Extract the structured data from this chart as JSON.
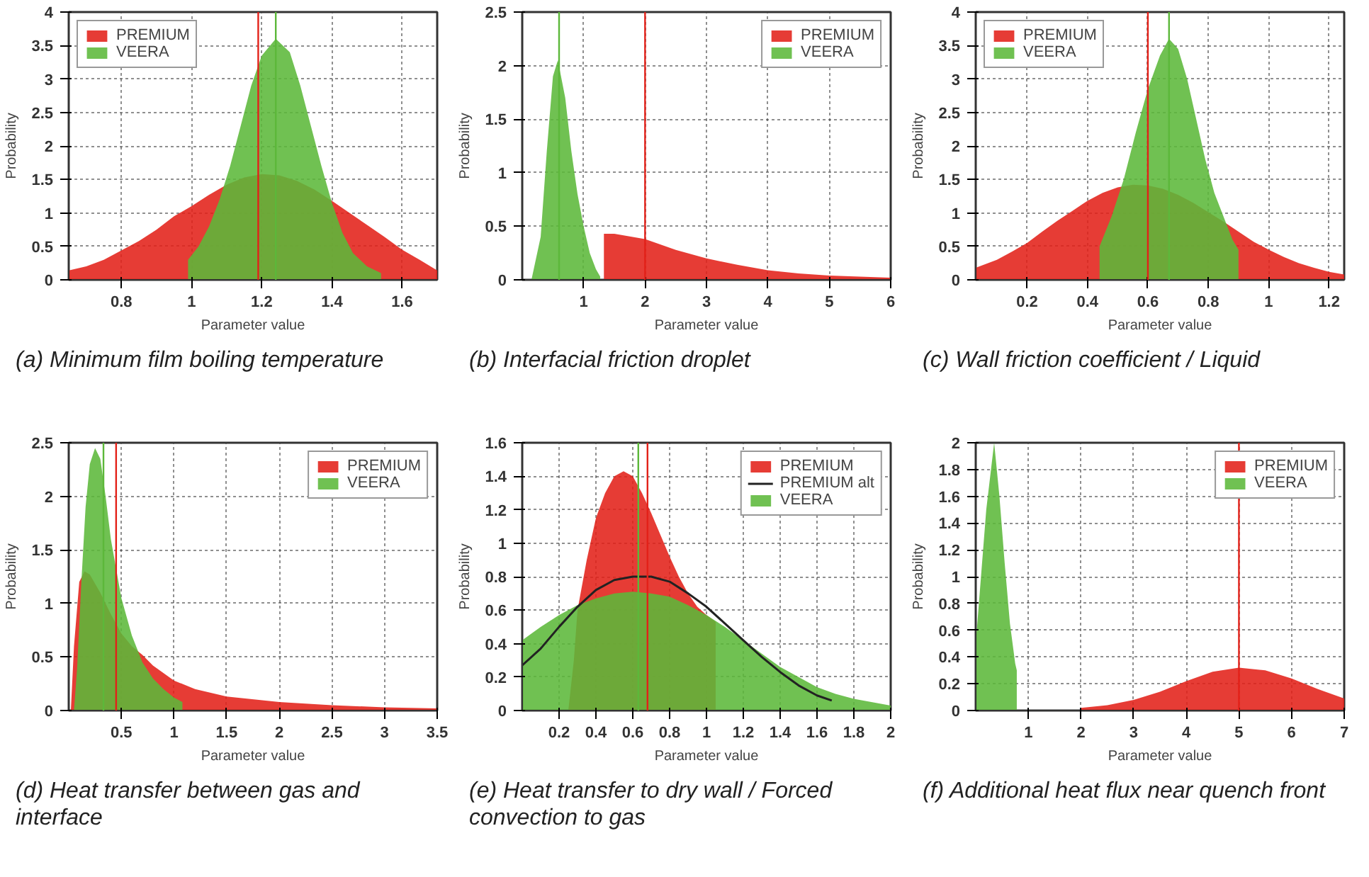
{
  "chart_data": [
    {
      "type": "area",
      "title": "(a) Minimum film boiling temperature",
      "xlabel": "Parameter value",
      "ylabel": "Probability",
      "xlim": [
        0.65,
        1.7
      ],
      "xticks": [
        0.8,
        1,
        1.2,
        1.4,
        1.6
      ],
      "ylim": [
        0,
        4
      ],
      "yticks": [
        0,
        0.5,
        1,
        1.5,
        2,
        2.5,
        3,
        3.5,
        4
      ],
      "grid": true,
      "legend": "top left",
      "series": [
        {
          "name": "PREMIUM",
          "color": "#e32119",
          "x": [
            0.65,
            0.7,
            0.75,
            0.8,
            0.85,
            0.9,
            0.95,
            1.0,
            1.05,
            1.1,
            1.15,
            1.2,
            1.25,
            1.3,
            1.35,
            1.4,
            1.45,
            1.5,
            1.55,
            1.6,
            1.65,
            1.7
          ],
          "values": [
            0.14,
            0.2,
            0.3,
            0.44,
            0.58,
            0.75,
            0.95,
            1.1,
            1.27,
            1.42,
            1.53,
            1.58,
            1.56,
            1.48,
            1.35,
            1.18,
            1.0,
            0.82,
            0.64,
            0.45,
            0.3,
            0.14
          ]
        },
        {
          "name": "VEERA",
          "color": "#5cb83a",
          "x": [
            0.99,
            1.02,
            1.05,
            1.08,
            1.11,
            1.14,
            1.17,
            1.2,
            1.24,
            1.28,
            1.31,
            1.34,
            1.37,
            1.4,
            1.43,
            1.46,
            1.5,
            1.54
          ],
          "values": [
            0.3,
            0.5,
            0.8,
            1.2,
            1.7,
            2.3,
            2.9,
            3.35,
            3.6,
            3.4,
            2.9,
            2.3,
            1.7,
            1.15,
            0.7,
            0.4,
            0.2,
            0.1
          ]
        }
      ],
      "ref_lines": [
        {
          "axis": "x",
          "value": 1.19,
          "color": "#e32119"
        },
        {
          "axis": "x",
          "value": 1.24,
          "color": "#5cb83a"
        }
      ]
    },
    {
      "type": "area",
      "title": "(b) Interfacial friction droplet",
      "xlabel": "Parameter value",
      "ylabel": "Probability",
      "xlim": [
        0,
        6
      ],
      "xticks": [
        1,
        2,
        3,
        4,
        5,
        6
      ],
      "ylim": [
        0,
        2.5
      ],
      "yticks": [
        0,
        0.5,
        1,
        1.5,
        2,
        2.5
      ],
      "grid": true,
      "legend": "top right",
      "series": [
        {
          "name": "PREMIUM",
          "color": "#e32119",
          "x": [
            1.33,
            1.5,
            2,
            2.5,
            3,
            3.5,
            4,
            4.5,
            5,
            5.5,
            6
          ],
          "values": [
            0.43,
            0.43,
            0.38,
            0.28,
            0.2,
            0.14,
            0.09,
            0.06,
            0.04,
            0.03,
            0.02
          ]
        },
        {
          "name": "VEERA",
          "color": "#5cb83a",
          "x": [
            0.15,
            0.3,
            0.4,
            0.5,
            0.58,
            0.7,
            0.8,
            0.9,
            1.0,
            1.1,
            1.2,
            1.27
          ],
          "values": [
            0,
            0.4,
            1.2,
            1.9,
            2.05,
            1.7,
            1.2,
            0.8,
            0.5,
            0.25,
            0.1,
            0.03
          ]
        }
      ],
      "ref_lines": [
        {
          "axis": "x",
          "value": 0.6,
          "color": "#5cb83a"
        },
        {
          "axis": "x",
          "value": 2.0,
          "color": "#e32119"
        }
      ]
    },
    {
      "type": "area",
      "title": "(c) Wall friction coefficient / Liquid",
      "xlabel": "Parameter value",
      "ylabel": "Probability",
      "xlim": [
        0.03,
        1.25
      ],
      "xticks": [
        0.2,
        0.4,
        0.6,
        0.8,
        1,
        1.2
      ],
      "ylim": [
        0,
        4
      ],
      "yticks": [
        0,
        0.5,
        1,
        1.5,
        2,
        2.5,
        3,
        3.5,
        4
      ],
      "grid": true,
      "legend": "top left",
      "series": [
        {
          "name": "PREMIUM",
          "color": "#e32119",
          "x": [
            0.03,
            0.1,
            0.15,
            0.2,
            0.25,
            0.3,
            0.35,
            0.4,
            0.45,
            0.5,
            0.55,
            0.6,
            0.65,
            0.7,
            0.75,
            0.8,
            0.85,
            0.9,
            0.95,
            1.0,
            1.05,
            1.1,
            1.15,
            1.2,
            1.25
          ],
          "values": [
            0.18,
            0.3,
            0.42,
            0.55,
            0.72,
            0.88,
            1.03,
            1.18,
            1.3,
            1.38,
            1.42,
            1.41,
            1.36,
            1.27,
            1.15,
            1.01,
            0.87,
            0.72,
            0.57,
            0.45,
            0.34,
            0.25,
            0.18,
            0.12,
            0.08
          ]
        },
        {
          "name": "VEERA",
          "color": "#5cb83a",
          "x": [
            0.44,
            0.48,
            0.52,
            0.56,
            0.6,
            0.64,
            0.67,
            0.7,
            0.73,
            0.76,
            0.79,
            0.82,
            0.85,
            0.88,
            0.9
          ],
          "values": [
            0.5,
            0.95,
            1.5,
            2.2,
            2.85,
            3.35,
            3.6,
            3.45,
            3.0,
            2.4,
            1.8,
            1.3,
            0.95,
            0.6,
            0.45
          ]
        }
      ],
      "ref_lines": [
        {
          "axis": "x",
          "value": 0.6,
          "color": "#e32119"
        },
        {
          "axis": "x",
          "value": 0.67,
          "color": "#5cb83a"
        }
      ]
    },
    {
      "type": "area",
      "title": "(d) Heat transfer between gas and interface",
      "xlabel": "Parameter value",
      "ylabel": "Probability",
      "xlim": [
        0,
        3.5
      ],
      "xticks": [
        0.5,
        1,
        1.5,
        2,
        2.5,
        3,
        3.5
      ],
      "ylim": [
        0,
        2.5
      ],
      "yticks": [
        0,
        0.5,
        1,
        1.5,
        2,
        2.5
      ],
      "grid": true,
      "legend": "top right",
      "series": [
        {
          "name": "PREMIUM",
          "color": "#e32119",
          "x": [
            0.02,
            0.05,
            0.1,
            0.15,
            0.2,
            0.3,
            0.4,
            0.5,
            0.6,
            0.7,
            0.8,
            1.0,
            1.2,
            1.5,
            2.0,
            2.5,
            3.0,
            3.5
          ],
          "values": [
            0,
            0.6,
            1.2,
            1.3,
            1.27,
            1.1,
            0.9,
            0.72,
            0.6,
            0.52,
            0.42,
            0.28,
            0.2,
            0.13,
            0.08,
            0.05,
            0.03,
            0.02
          ]
        },
        {
          "name": "VEERA",
          "color": "#5cb83a",
          "x": [
            0.05,
            0.08,
            0.12,
            0.16,
            0.2,
            0.25,
            0.3,
            0.35,
            0.4,
            0.5,
            0.6,
            0.7,
            0.8,
            0.9,
            1.0,
            1.08
          ],
          "values": [
            0,
            0.4,
            1.2,
            1.9,
            2.3,
            2.45,
            2.35,
            2.0,
            1.6,
            1.05,
            0.7,
            0.45,
            0.3,
            0.2,
            0.12,
            0.08
          ]
        }
      ],
      "ref_lines": [
        {
          "axis": "x",
          "value": 0.33,
          "color": "#5cb83a"
        },
        {
          "axis": "x",
          "value": 0.45,
          "color": "#e32119"
        }
      ]
    },
    {
      "type": "area",
      "title": "(e) Heat transfer to dry wall / Forced convection to gas",
      "xlabel": "Parameter value",
      "ylabel": "Probability",
      "xlim": [
        0,
        2
      ],
      "xticks": [
        0.2,
        0.4,
        0.6,
        0.8,
        1,
        1.2,
        1.4,
        1.6,
        1.8,
        2
      ],
      "ylim": [
        0,
        1.6
      ],
      "yticks": [
        0,
        0.2,
        0.4,
        0.6,
        0.8,
        1,
        1.2,
        1.4,
        1.6
      ],
      "grid": true,
      "legend": "top right",
      "series": [
        {
          "name": "PREMIUM",
          "color": "#e32119",
          "x": [
            0.25,
            0.28,
            0.3,
            0.35,
            0.4,
            0.45,
            0.5,
            0.55,
            0.6,
            0.65,
            0.7,
            0.75,
            0.8,
            0.85,
            0.9,
            0.95,
            1.0,
            1.05
          ],
          "values": [
            0,
            0.3,
            0.6,
            0.9,
            1.15,
            1.3,
            1.4,
            1.43,
            1.4,
            1.3,
            1.18,
            1.05,
            0.92,
            0.8,
            0.7,
            0.62,
            0.57,
            0.53
          ]
        },
        {
          "name": "PREMIUM alt",
          "type": "line",
          "color": "#222222",
          "x": [
            0,
            0.1,
            0.2,
            0.3,
            0.4,
            0.5,
            0.6,
            0.7,
            0.8,
            0.9,
            1.0,
            1.1,
            1.2,
            1.3,
            1.4,
            1.5,
            1.6,
            1.68
          ],
          "values": [
            0.27,
            0.37,
            0.5,
            0.62,
            0.72,
            0.78,
            0.8,
            0.8,
            0.77,
            0.7,
            0.62,
            0.52,
            0.42,
            0.32,
            0.23,
            0.15,
            0.09,
            0.06
          ]
        },
        {
          "name": "VEERA",
          "color": "#5cb83a",
          "x": [
            0,
            0.1,
            0.2,
            0.3,
            0.4,
            0.5,
            0.6,
            0.7,
            0.8,
            0.9,
            1.0,
            1.1,
            1.2,
            1.3,
            1.4,
            1.5,
            1.6,
            1.7,
            1.8,
            1.9,
            2.0
          ],
          "values": [
            0.42,
            0.5,
            0.57,
            0.63,
            0.67,
            0.7,
            0.71,
            0.7,
            0.68,
            0.63,
            0.57,
            0.5,
            0.42,
            0.34,
            0.26,
            0.2,
            0.14,
            0.1,
            0.07,
            0.05,
            0.03
          ]
        }
      ],
      "ref_lines": [
        {
          "axis": "x",
          "value": 0.63,
          "color": "#5cb83a"
        },
        {
          "axis": "x",
          "value": 0.68,
          "color": "#e32119"
        }
      ]
    },
    {
      "type": "area",
      "title": "(f) Additional heat flux near quench front",
      "xlabel": "Parameter value",
      "ylabel": "Probability",
      "xlim": [
        0,
        7
      ],
      "xticks": [
        1,
        2,
        3,
        4,
        5,
        6,
        7
      ],
      "ylim": [
        0,
        2
      ],
      "yticks": [
        0,
        0.2,
        0.4,
        0.6,
        0.8,
        1,
        1.2,
        1.4,
        1.6,
        1.8,
        2
      ],
      "grid": true,
      "legend": "top right",
      "series": [
        {
          "name": "PREMIUM",
          "color": "#e32119",
          "x": [
            2,
            2.5,
            3,
            3.5,
            4,
            4.5,
            5,
            5.5,
            6,
            6.5,
            7
          ],
          "values": [
            0.02,
            0.04,
            0.08,
            0.14,
            0.22,
            0.29,
            0.32,
            0.3,
            0.24,
            0.16,
            0.09
          ]
        },
        {
          "name": "VEERA",
          "color": "#5cb83a",
          "x": [
            0,
            0.1,
            0.2,
            0.35,
            0.45,
            0.55,
            0.65,
            0.75,
            0.78
          ],
          "values": [
            0.5,
            1.0,
            1.5,
            2.0,
            1.6,
            1.1,
            0.65,
            0.35,
            0.3
          ]
        }
      ],
      "ref_lines": [
        {
          "axis": "x",
          "value": 5,
          "color": "#e32119"
        }
      ]
    }
  ]
}
